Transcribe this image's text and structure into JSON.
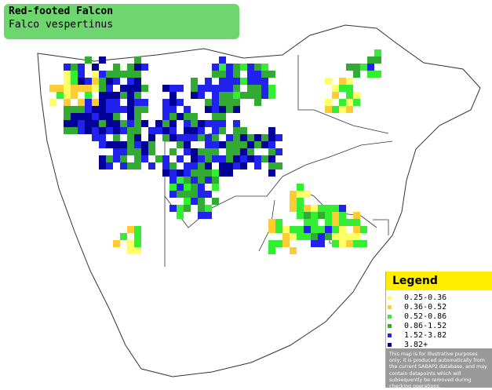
{
  "header": {
    "title": "Red-footed Falcon",
    "subtitle": "Falco vespertinus"
  },
  "legend": {
    "title": "Legend",
    "items": [
      {
        "label": "0.25-0.36",
        "color": "#ffff66"
      },
      {
        "label": "0.36-0.52",
        "color": "#ffcc33"
      },
      {
        "label": "0.52-0.86",
        "color": "#33ee33"
      },
      {
        "label": "0.86-1.52",
        "color": "#33aa33"
      },
      {
        "label": "1.52-3.82",
        "color": "#2222ee"
      },
      {
        "label": "3.82+",
        "color": "#000099"
      }
    ],
    "disclaimer": "This map is for illustrative purposes only; it is produced automatically from the current SABAP2 database, and may contain datapoints which will subsequently be removed during checking operations."
  }
}
